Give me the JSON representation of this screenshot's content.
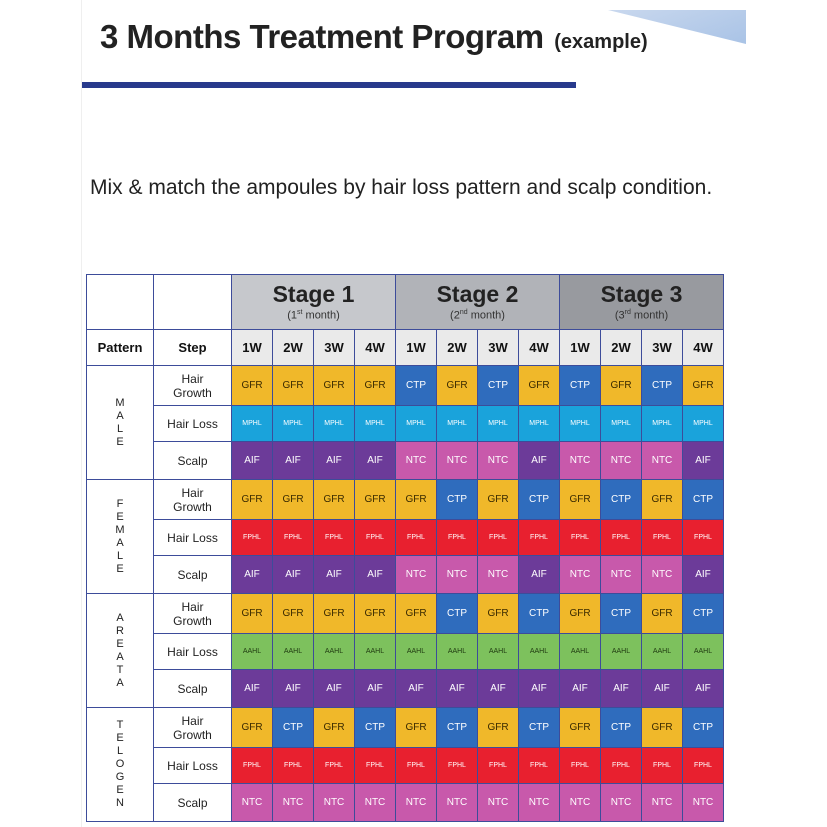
{
  "header": {
    "title": "3 Months Treatment Program",
    "title_suffix": "(example)",
    "subtitle": "Mix & match the ampoules by hair loss pattern and scalp condition."
  },
  "table": {
    "stages": [
      {
        "name": "Stage 1",
        "ord": "1",
        "sup": "st",
        "month": "month"
      },
      {
        "name": "Stage 2",
        "ord": "2",
        "sup": "nd",
        "month": "month"
      },
      {
        "name": "Stage 3",
        "ord": "3",
        "sup": "rd",
        "month": "month"
      }
    ],
    "col_pattern": "Pattern",
    "col_step": "Step",
    "weeks": [
      "1W",
      "2W",
      "3W",
      "4W",
      "1W",
      "2W",
      "3W",
      "4W",
      "1W",
      "2W",
      "3W",
      "4W"
    ],
    "groups": [
      {
        "letters": [
          "M",
          "A",
          "L",
          "E"
        ],
        "rows": [
          {
            "step": [
              "Hair",
              "Growth"
            ],
            "cells": [
              "GFR",
              "GFR",
              "GFR",
              "GFR",
              "CTP",
              "GFR",
              "CTP",
              "GFR",
              "CTP",
              "GFR",
              "CTP",
              "GFR"
            ]
          },
          {
            "step": [
              "Hair Loss"
            ],
            "cells": [
              "MPHL",
              "MPHL",
              "MPHL",
              "MPHL",
              "MPHL",
              "MPHL",
              "MPHL",
              "MPHL",
              "MPHL",
              "MPHL",
              "MPHL",
              "MPHL"
            ]
          },
          {
            "step": [
              "Scalp"
            ],
            "cells": [
              "AIF",
              "AIF",
              "AIF",
              "AIF",
              "NTC",
              "NTC",
              "NTC",
              "AIF",
              "NTC",
              "NTC",
              "NTC",
              "AIF"
            ]
          }
        ]
      },
      {
        "letters": [
          "F",
          "E",
          "M",
          "A",
          "L",
          "E"
        ],
        "rows": [
          {
            "step": [
              "Hair",
              "Growth"
            ],
            "cells": [
              "GFR",
              "GFR",
              "GFR",
              "GFR",
              "GFR",
              "CTP",
              "GFR",
              "CTP",
              "GFR",
              "CTP",
              "GFR",
              "CTP"
            ]
          },
          {
            "step": [
              "Hair Loss"
            ],
            "cells": [
              "FPHL",
              "FPHL",
              "FPHL",
              "FPHL",
              "FPHL",
              "FPHL",
              "FPHL",
              "FPHL",
              "FPHL",
              "FPHL",
              "FPHL",
              "FPHL"
            ]
          },
          {
            "step": [
              "Scalp"
            ],
            "cells": [
              "AIF",
              "AIF",
              "AIF",
              "AIF",
              "NTC",
              "NTC",
              "NTC",
              "AIF",
              "NTC",
              "NTC",
              "NTC",
              "AIF"
            ]
          }
        ]
      },
      {
        "letters": [
          "A",
          "R",
          "E",
          "A",
          "T",
          "A"
        ],
        "rows": [
          {
            "step": [
              "Hair",
              "Growth"
            ],
            "cells": [
              "GFR",
              "GFR",
              "GFR",
              "GFR",
              "GFR",
              "CTP",
              "GFR",
              "CTP",
              "GFR",
              "CTP",
              "GFR",
              "CTP"
            ]
          },
          {
            "step": [
              "Hair Loss"
            ],
            "cells": [
              "AAHL",
              "AAHL",
              "AAHL",
              "AAHL",
              "AAHL",
              "AAHL",
              "AAHL",
              "AAHL",
              "AAHL",
              "AAHL",
              "AAHL",
              "AAHL"
            ]
          },
          {
            "step": [
              "Scalp"
            ],
            "cells": [
              "AIF",
              "AIF",
              "AIF",
              "AIF",
              "AIF",
              "AIF",
              "AIF",
              "AIF",
              "AIF",
              "AIF",
              "AIF",
              "AIF"
            ]
          }
        ]
      },
      {
        "letters": [
          "T",
          "E",
          "L",
          "O",
          "G",
          "E",
          "N"
        ],
        "rows": [
          {
            "step": [
              "Hair",
              "Growth"
            ],
            "cells": [
              "GFR",
              "CTP",
              "GFR",
              "CTP",
              "GFR",
              "CTP",
              "GFR",
              "CTP",
              "GFR",
              "CTP",
              "GFR",
              "CTP"
            ]
          },
          {
            "step": [
              "Hair Loss"
            ],
            "cells": [
              "FPHL",
              "FPHL",
              "FPHL",
              "FPHL",
              "FPHL",
              "FPHL",
              "FPHL",
              "FPHL",
              "FPHL",
              "FPHL",
              "FPHL",
              "FPHL"
            ]
          },
          {
            "step": [
              "Scalp"
            ],
            "cells": [
              "NTC",
              "NTC",
              "NTC",
              "NTC",
              "NTC",
              "NTC",
              "NTC",
              "NTC",
              "NTC",
              "NTC",
              "NTC",
              "NTC"
            ]
          }
        ]
      }
    ]
  }
}
